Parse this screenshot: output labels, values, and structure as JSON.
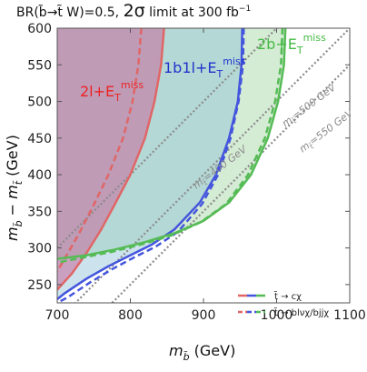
{
  "chart_data": {
    "type": "area",
    "title": "BR(b̃→t̃ W)=0.5, 2σ limit at 300 fb⁻¹",
    "title_parts": {
      "prefix": "BR(",
      "b": "b̃",
      "arrow": "→",
      "t": "t̃",
      "mid": " W)=0.5, ",
      "sigma": "2σ",
      "suffix": " limit at 300 fb",
      "sup": "−1"
    },
    "xlabel": "m (GeV)",
    "xlabel_parts": {
      "m": "m",
      "sub": "b̃",
      "unit": " (GeV)"
    },
    "ylabel": "m − m (GeV)",
    "ylabel_parts": {
      "m1": "m",
      "sub1": "b̃",
      "minus": " − ",
      "m2": "m",
      "sub2": "t̃",
      "unit": " (GeV)"
    },
    "xlim": [
      700,
      1100
    ],
    "ylim": [
      225,
      600
    ],
    "xticks": [
      700,
      800,
      900,
      1000,
      1100
    ],
    "yticks": [
      250,
      300,
      350,
      400,
      450,
      500,
      550,
      600
    ],
    "xtick_labels": [
      "700",
      "800",
      "900",
      "1000",
      "1100"
    ],
    "ytick_labels": [
      "250",
      "300",
      "350",
      "400",
      "450",
      "500",
      "550",
      "600"
    ],
    "grid": false,
    "legend_position": "bottom-right",
    "legend": [
      {
        "label": "t̃ → cχ",
        "style": "solid"
      },
      {
        "label": "t̃ → blνχ/bjjχ",
        "style": "dashed"
      }
    ],
    "series": [
      {
        "name": "2l+E_T^miss",
        "color": "#e06666",
        "style": "solid",
        "x": [
          846,
          842,
          833,
          820,
          800,
          780,
          760,
          740,
          720,
          700
        ],
        "y": [
          600,
          550,
          500,
          450,
          400,
          362,
          325,
          293,
          265,
          243
        ]
      },
      {
        "name": "2l+E_T^miss",
        "color": "#e06666",
        "style": "dashed",
        "x": [
          815,
          811,
          803,
          790,
          770,
          750,
          730,
          710,
          700
        ],
        "y": [
          600,
          550,
          500,
          450,
          400,
          359,
          320,
          285,
          268
        ]
      },
      {
        "name": "1b1l+E_T^miss",
        "color": "#4455dd",
        "style": "solid",
        "x": [
          953,
          952,
          947,
          935,
          917,
          895,
          860,
          830,
          800,
          770,
          740,
          710,
          700
        ],
        "y": [
          600,
          550,
          500,
          450,
          400,
          362,
          325,
          305,
          290,
          275,
          258,
          238,
          230
        ]
      },
      {
        "name": "1b1l+E_T^miss",
        "color": "#4455dd",
        "style": "dashed",
        "x": [
          955,
          954,
          948,
          937,
          920,
          898,
          865,
          835,
          805,
          775,
          745,
          715,
          700
        ],
        "y": [
          600,
          550,
          500,
          450,
          400,
          360,
          322,
          302,
          287,
          271,
          253,
          233,
          225
        ]
      },
      {
        "name": "2b+E_T^miss",
        "color": "#55bb55",
        "style": "solid",
        "x": [
          1012,
          1010,
          1002,
          988,
          965,
          935,
          900,
          860,
          820,
          780,
          740,
          700
        ],
        "y": [
          600,
          550,
          500,
          450,
          400,
          362,
          337,
          320,
          308,
          298,
          290,
          285
        ]
      },
      {
        "name": "2b+E_T^miss",
        "color": "#55bb55",
        "style": "dashed",
        "x": [
          1008,
          1006,
          998,
          984,
          961,
          931,
          896,
          856,
          816,
          776,
          736,
          700
        ],
        "y": [
          600,
          550,
          500,
          450,
          400,
          360,
          335,
          317,
          305,
          295,
          287,
          280
        ]
      }
    ],
    "reference_lines": [
      {
        "label": "m_t̃=400 GeV",
        "mt": 400
      },
      {
        "label": "m_t̃=500 GeV",
        "mt": 500
      },
      {
        "label": "m_t̃=550 GeV",
        "mt": 550
      }
    ],
    "region_labels": [
      {
        "base": "2l+E",
        "sub": "T",
        "sup": "miss",
        "color": "#ee2222"
      },
      {
        "base": "1b1l+E",
        "sub": "T",
        "sup": "miss",
        "color": "#2233cc"
      },
      {
        "base": "2b+E",
        "sub": "T",
        "sup": "miss",
        "color": "#44bb44"
      }
    ],
    "iso_label_parts": [
      {
        "m": "m",
        "sub": "t̃",
        "val": "=400 GeV"
      },
      {
        "m": "m",
        "sub": "t̃",
        "val": "=500 GeV"
      },
      {
        "m": "m",
        "sub": "t̃",
        "val": "=550 GeV"
      }
    ],
    "colors": {
      "red_fill": "#c96a9c",
      "blue_fill": "#8ec2d8",
      "green_fill": "#9fd39f",
      "overlap_fill": "#b9a9b5",
      "ref_line": "#8a8a8a"
    }
  }
}
